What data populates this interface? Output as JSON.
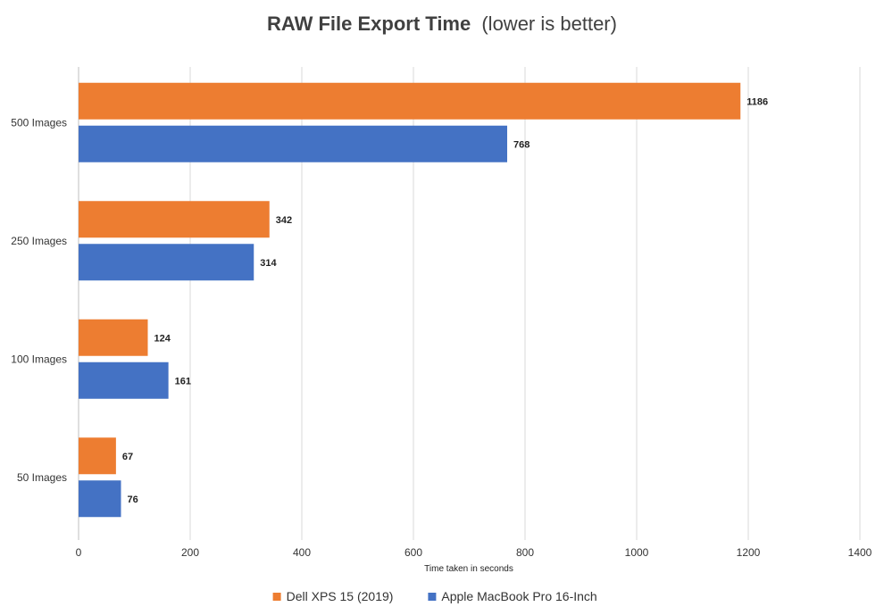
{
  "chart_data": {
    "type": "bar",
    "orientation": "horizontal",
    "title": "RAW File Export Time",
    "subtitle": "(lower is better)",
    "xlabel": "Time taken in seconds",
    "ylabel": "",
    "categories": [
      "500 Images",
      "250 Images",
      "100 Images",
      "50 Images"
    ],
    "series": [
      {
        "name": "Dell XPS 15 (2019)",
        "color": "#ED7D31",
        "values": [
          1186,
          342,
          124,
          67
        ]
      },
      {
        "name": "Apple MacBook Pro 16-Inch",
        "color": "#4472C4",
        "values": [
          768,
          314,
          161,
          76
        ]
      }
    ],
    "xlim": [
      0,
      1400
    ],
    "xticks": [
      0,
      200,
      400,
      600,
      800,
      1000,
      1200,
      1400
    ],
    "grid": "vertical",
    "legend": "bottom",
    "data_labels": true
  }
}
